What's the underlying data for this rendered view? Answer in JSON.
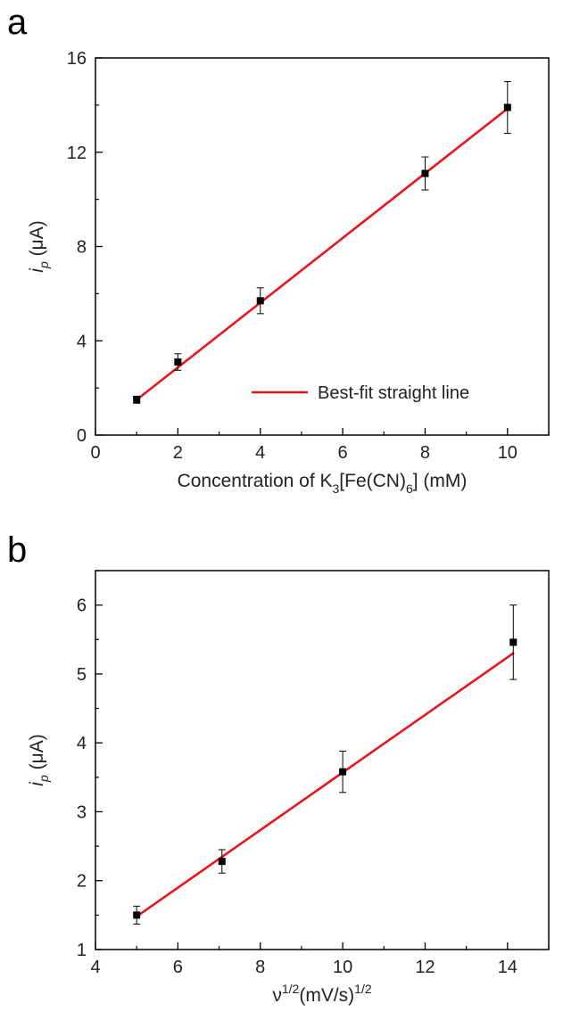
{
  "chart_data": [
    {
      "panel": "a",
      "type": "scatter",
      "xlabel_parts": [
        "Concentration of K",
        "3",
        "[Fe(CN)",
        "6",
        "] (mM)"
      ],
      "ylabel_parts": [
        "i",
        "p",
        " (μA)"
      ],
      "xlim": [
        0,
        11
      ],
      "ylim": [
        0,
        16
      ],
      "xticks": [
        0,
        2,
        4,
        6,
        8,
        10
      ],
      "yticks": [
        0,
        4,
        8,
        12,
        16
      ],
      "legend": {
        "label": "Best-fit straight line",
        "position": "bottom-right"
      },
      "series": [
        {
          "name": "Best-fit straight line",
          "x": [
            1,
            2,
            4,
            8,
            10
          ],
          "y": [
            1.5,
            3.1,
            5.7,
            11.1,
            13.9
          ],
          "y_err": [
            0.15,
            0.35,
            0.55,
            0.7,
            1.1
          ]
        }
      ],
      "fit_line": {
        "color": "#e8141b",
        "x": [
          1,
          10
        ],
        "y": [
          1.5,
          13.85
        ]
      },
      "grid": false
    },
    {
      "panel": "b",
      "type": "scatter",
      "xlabel_parts": [
        "ν",
        "1/2",
        "(mV/s)",
        "1/2"
      ],
      "ylabel_parts": [
        "i",
        "p",
        " (μA)"
      ],
      "xlim": [
        4,
        15
      ],
      "ylim": [
        1,
        6.5
      ],
      "xticks": [
        4,
        6,
        8,
        10,
        12,
        14
      ],
      "yticks": [
        1,
        2,
        3,
        4,
        5,
        6
      ],
      "series": [
        {
          "x": [
            5,
            7.07,
            10,
            14.14
          ],
          "y": [
            1.5,
            2.28,
            3.58,
            5.46
          ],
          "y_err": [
            0.13,
            0.17,
            0.3,
            0.54
          ]
        }
      ],
      "fit_line": {
        "color": "#e8141b",
        "x": [
          5,
          14.14
        ],
        "y": [
          1.48,
          5.3
        ]
      },
      "grid": false
    }
  ],
  "panels": {
    "a": "a",
    "b": "b"
  }
}
